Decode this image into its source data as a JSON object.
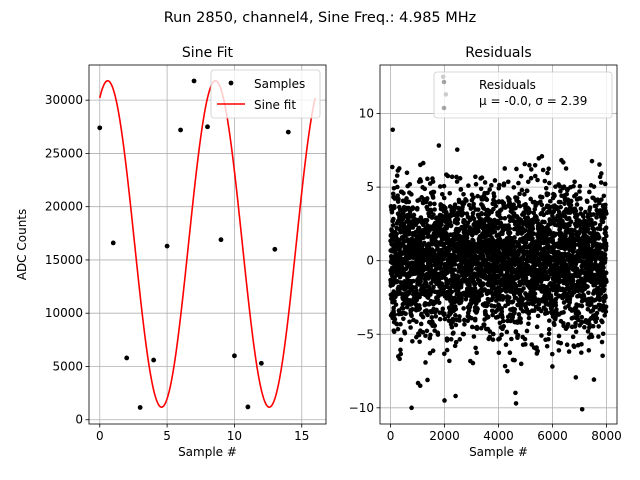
{
  "figure": {
    "suptitle": "Run 2850, channel4, Sine Freq.: 4.985 MHz"
  },
  "chart_data": [
    {
      "type": "line",
      "title": "Sine Fit",
      "xlabel": "Sample #",
      "ylabel": "ADC Counts",
      "xlim": [
        -0.8,
        16.8
      ],
      "ylim": [
        -400,
        33300
      ],
      "xticks": [
        0,
        5,
        10,
        15
      ],
      "yticks": [
        0,
        5000,
        10000,
        15000,
        20000,
        25000,
        30000
      ],
      "grid": true,
      "legend_position": "top-right",
      "sine_model": {
        "amplitude": 15320,
        "offset": 16500,
        "period": 8.0,
        "phase_deg": 63.5,
        "x_range": [
          0,
          16
        ]
      },
      "series": [
        {
          "name": "Samples",
          "style": "points",
          "color": "#000000",
          "x": [
            0,
            1,
            2,
            3,
            4,
            5,
            6,
            7,
            8,
            9,
            10,
            11,
            12,
            13,
            14
          ],
          "y": [
            27400,
            16600,
            5800,
            1150,
            5600,
            16300,
            27200,
            31800,
            27500,
            16900,
            6000,
            1200,
            5300,
            16000,
            27000
          ]
        },
        {
          "name": "Sine fit",
          "style": "line",
          "color": "#ff0000"
        }
      ]
    },
    {
      "type": "scatter",
      "title": "Residuals",
      "xlabel": "Sample #",
      "ylabel": "",
      "xlim": [
        -390,
        8390
      ],
      "ylim": [
        -11.1,
        13.3
      ],
      "xticks": [
        0,
        2000,
        4000,
        6000,
        8000
      ],
      "yticks": [
        -10,
        -5,
        0,
        5,
        10
      ],
      "grid": true,
      "legend_position": "top-right",
      "legend": {
        "line1": "Residuals",
        "line2": "μ = -0.0, σ = 2.39"
      },
      "series": [
        {
          "name": "Residuals",
          "color": "#000000",
          "n_points": 8000,
          "mean": -0.0,
          "sigma": 2.39,
          "notable_points": [
            [
              80,
              8.9
            ],
            [
              1950,
              12.5
            ],
            [
              2050,
              11.3
            ],
            [
              780,
              -10.0
            ],
            [
              7100,
              -10.1
            ],
            [
              4650,
              -9.7
            ],
            [
              2000,
              -9.5
            ],
            [
              1100,
              -8.5
            ]
          ]
        }
      ]
    }
  ]
}
